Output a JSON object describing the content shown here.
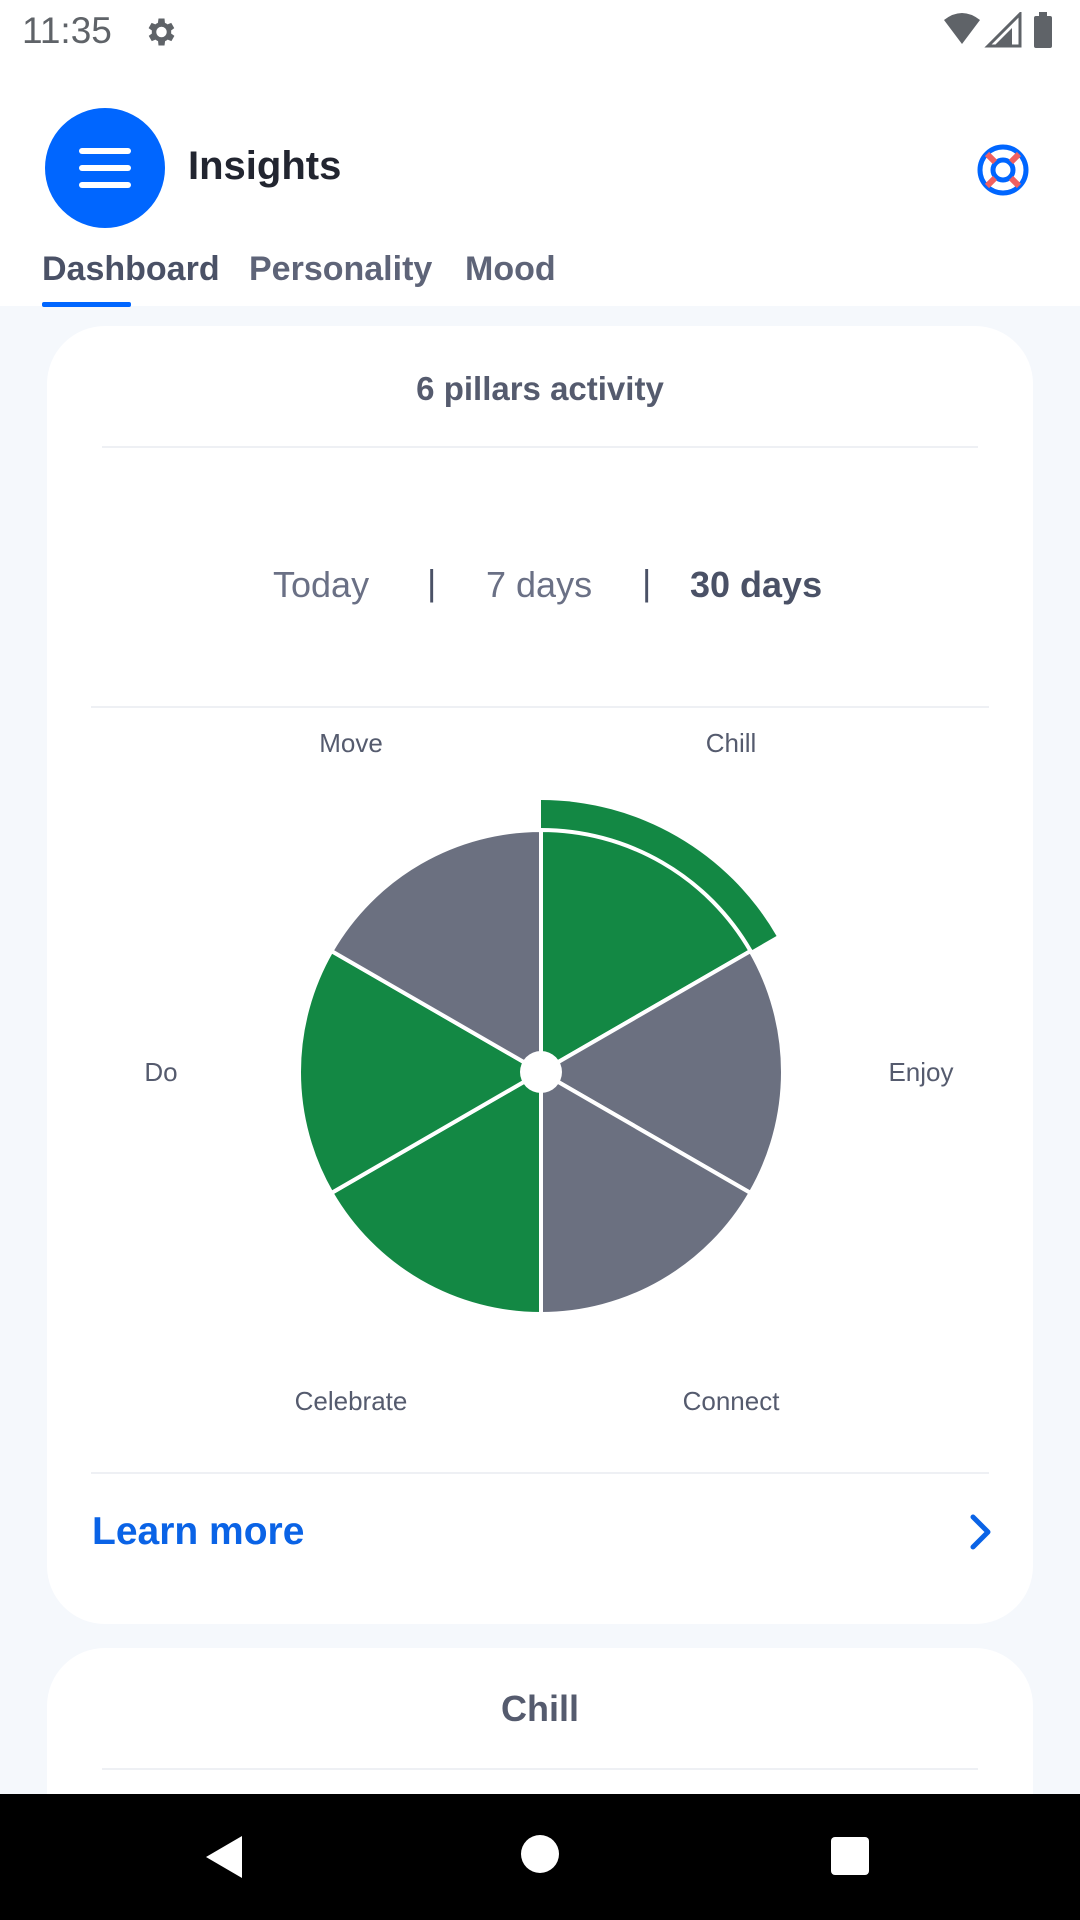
{
  "status_bar": {
    "time": "11:35",
    "icons": [
      "settings-gear-icon",
      "wifi-icon",
      "cell-signal-icon",
      "battery-icon"
    ]
  },
  "header": {
    "title": "Insights",
    "menu_icon": "hamburger-menu-icon",
    "help_icon": "lifebuoy-icon",
    "accent_color": "#0066ff"
  },
  "tabs": [
    {
      "label": "Dashboard",
      "active": true
    },
    {
      "label": "Personality",
      "active": false
    },
    {
      "label": "Mood",
      "active": false
    }
  ],
  "pillars_card": {
    "title": "6 pillars activity",
    "periods": [
      {
        "label": "Today",
        "active": false
      },
      {
        "label": "7 days",
        "active": false
      },
      {
        "label": "30 days",
        "active": true
      }
    ],
    "separator": "|",
    "learn_more": "Learn more"
  },
  "chart_data": {
    "type": "pie",
    "categories": [
      "Chill",
      "Enjoy",
      "Connect",
      "Celebrate",
      "Do",
      "Move"
    ],
    "values": [
      1,
      1,
      1,
      1,
      1,
      1
    ],
    "active": [
      true,
      false,
      false,
      true,
      true,
      false
    ],
    "highlighted": "Chill",
    "colors": {
      "active": "#138844",
      "inactive": "#6b7080"
    }
  },
  "second_card": {
    "title": "Chill"
  },
  "nav_bar": {
    "icons": [
      "back-icon",
      "home-icon",
      "recents-icon"
    ]
  }
}
